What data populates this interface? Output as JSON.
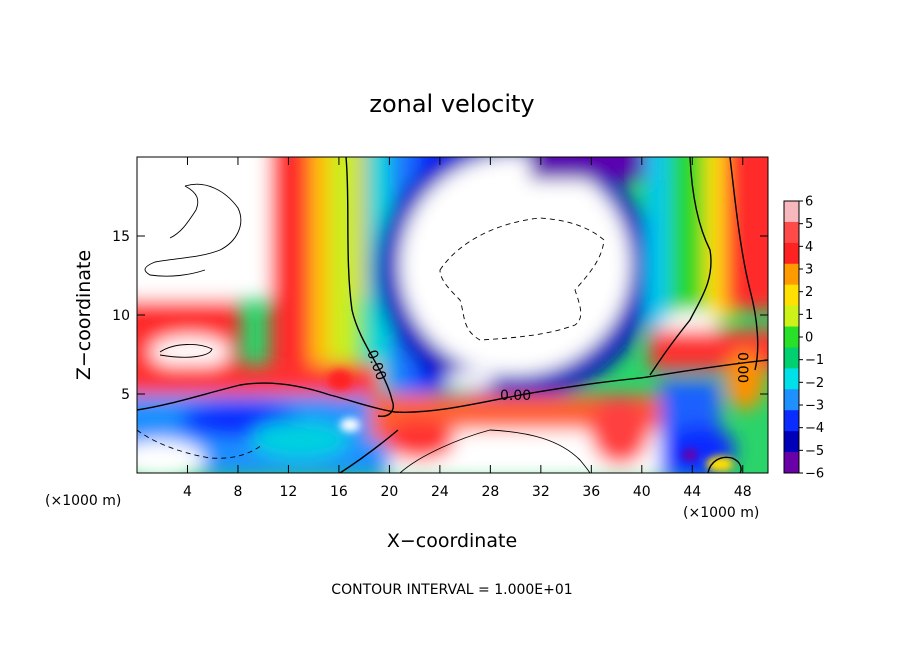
{
  "chart_data": {
    "type": "heatmap",
    "title": "zonal velocity",
    "xlabel": "X−coordinate",
    "ylabel": "Z−coordinate",
    "x_unit": "(×1000 m)",
    "z_unit": "(×1000 m)",
    "xlim": [
      0,
      50
    ],
    "ylim": [
      0,
      20
    ],
    "x_ticks": [
      4,
      8,
      12,
      16,
      20,
      24,
      28,
      32,
      36,
      40,
      44,
      48
    ],
    "x_tick_labels": [
      "4",
      "8",
      "12",
      "16",
      "20",
      "24",
      "28",
      "32",
      "36",
      "40",
      "44",
      "48"
    ],
    "y_ticks": [
      5,
      10,
      15
    ],
    "y_tick_labels": [
      "5",
      "10",
      "15"
    ],
    "colorbar": {
      "levels": [
        6,
        5,
        4,
        3,
        2,
        1,
        0,
        -1,
        -2,
        -3,
        -4,
        -5,
        -6
      ],
      "labels": [
        "6",
        "5",
        "4",
        "3",
        "2",
        "1",
        "0",
        "−1",
        "−2",
        "−3",
        "−4",
        "−5",
        "−6"
      ],
      "colors": [
        "#f6b8bc",
        "#ff4a4a",
        "#ff2222",
        "#ff9a00",
        "#ffe000",
        "#cdf21a",
        "#28e028",
        "#00d070",
        "#00e0e8",
        "#1e90ff",
        "#0a2cff",
        "#0000b8",
        "#6a00a8"
      ],
      "range": [
        -6,
        6
      ],
      "out_of_range_color": "#ffffff"
    },
    "contour_interval_text": "CONTOUR INTERVAL = 1.000E+01",
    "contour_labels": [
      "0.00",
      "0.00",
      "0.00"
    ],
    "grid": false
  }
}
